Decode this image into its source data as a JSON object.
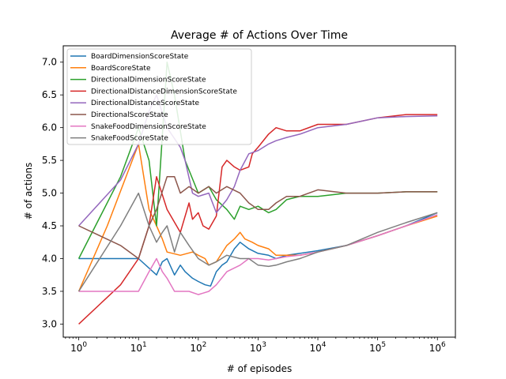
{
  "chart_data": {
    "type": "line",
    "title": "Average # of Actions Over Time",
    "xlabel": "# of episodes",
    "ylabel": "# of actions",
    "xscale": "log",
    "xlim": [
      0.55,
      2000000
    ],
    "ylim": [
      2.8,
      7.25
    ],
    "xticks": [
      {
        "value": 1,
        "base": "10",
        "exp": "0"
      },
      {
        "value": 10,
        "base": "10",
        "exp": "1"
      },
      {
        "value": 100,
        "base": "10",
        "exp": "2"
      },
      {
        "value": 1000,
        "base": "10",
        "exp": "3"
      },
      {
        "value": 10000,
        "base": "10",
        "exp": "4"
      },
      {
        "value": 100000,
        "base": "10",
        "exp": "5"
      },
      {
        "value": 1000000,
        "base": "10",
        "exp": "6"
      }
    ],
    "yticks": [
      "3.0",
      "3.5",
      "4.0",
      "4.5",
      "5.0",
      "5.5",
      "6.0",
      "6.5",
      "7.0"
    ],
    "legend_position": "top-left",
    "grid": false,
    "series": [
      {
        "name": "BoardDimensionScoreState",
        "color": "#1f77b4",
        "points": [
          [
            1,
            4.0
          ],
          [
            3,
            4.0
          ],
          [
            10,
            4.0
          ],
          [
            20,
            3.75
          ],
          [
            25,
            3.95
          ],
          [
            30,
            4.0
          ],
          [
            40,
            3.75
          ],
          [
            50,
            3.9
          ],
          [
            60,
            3.8
          ],
          [
            80,
            3.7
          ],
          [
            100,
            3.65
          ],
          [
            130,
            3.6
          ],
          [
            160,
            3.58
          ],
          [
            200,
            3.8
          ],
          [
            250,
            3.9
          ],
          [
            300,
            3.95
          ],
          [
            400,
            4.15
          ],
          [
            500,
            4.25
          ],
          [
            700,
            4.15
          ],
          [
            1000,
            4.08
          ],
          [
            1500,
            4.05
          ],
          [
            2000,
            4.0
          ],
          [
            3000,
            4.05
          ],
          [
            5000,
            4.08
          ],
          [
            10000,
            4.12
          ],
          [
            30000,
            4.2
          ],
          [
            100000,
            4.35
          ],
          [
            300000,
            4.5
          ],
          [
            1000000,
            4.7
          ]
        ]
      },
      {
        "name": "BoardScoreState",
        "color": "#ff7f0e",
        "points": [
          [
            1,
            3.5
          ],
          [
            3,
            4.5
          ],
          [
            10,
            5.75
          ],
          [
            15,
            4.75
          ],
          [
            20,
            4.5
          ],
          [
            25,
            4.3
          ],
          [
            30,
            4.1
          ],
          [
            50,
            4.05
          ],
          [
            80,
            4.1
          ],
          [
            100,
            4.05
          ],
          [
            130,
            4.0
          ],
          [
            150,
            3.9
          ],
          [
            200,
            3.95
          ],
          [
            300,
            4.2
          ],
          [
            400,
            4.3
          ],
          [
            500,
            4.4
          ],
          [
            600,
            4.3
          ],
          [
            800,
            4.25
          ],
          [
            1000,
            4.2
          ],
          [
            1500,
            4.15
          ],
          [
            2000,
            4.05
          ],
          [
            3000,
            4.05
          ],
          [
            5000,
            4.05
          ],
          [
            10000,
            4.1
          ],
          [
            30000,
            4.2
          ],
          [
            100000,
            4.35
          ],
          [
            300000,
            4.5
          ],
          [
            1000000,
            4.65
          ]
        ]
      },
      {
        "name": "DirectionalDimensionScoreState",
        "color": "#2ca02c",
        "points": [
          [
            1,
            4.0
          ],
          [
            5,
            5.25
          ],
          [
            10,
            6.0
          ],
          [
            15,
            5.5
          ],
          [
            20,
            4.5
          ],
          [
            30,
            7.0
          ],
          [
            40,
            6.5
          ],
          [
            60,
            5.5
          ],
          [
            100,
            5.0
          ],
          [
            150,
            5.1
          ],
          [
            200,
            4.9
          ],
          [
            300,
            4.75
          ],
          [
            400,
            4.6
          ],
          [
            500,
            4.8
          ],
          [
            700,
            4.75
          ],
          [
            1000,
            4.8
          ],
          [
            1500,
            4.7
          ],
          [
            2000,
            4.75
          ],
          [
            3000,
            4.9
          ],
          [
            5000,
            4.95
          ],
          [
            10000,
            4.95
          ],
          [
            30000,
            5.0
          ],
          [
            100000,
            5.0
          ],
          [
            300000,
            5.02
          ],
          [
            1000000,
            5.02
          ]
        ]
      },
      {
        "name": "DirectionalDistanceDimensionScoreState",
        "color": "#d62728",
        "points": [
          [
            1,
            3.0
          ],
          [
            5,
            3.6
          ],
          [
            10,
            4.0
          ],
          [
            15,
            4.5
          ],
          [
            20,
            5.25
          ],
          [
            30,
            4.75
          ],
          [
            50,
            4.4
          ],
          [
            70,
            4.85
          ],
          [
            80,
            4.6
          ],
          [
            100,
            4.7
          ],
          [
            120,
            4.5
          ],
          [
            150,
            4.45
          ],
          [
            200,
            4.65
          ],
          [
            250,
            5.4
          ],
          [
            300,
            5.5
          ],
          [
            400,
            5.4
          ],
          [
            500,
            5.35
          ],
          [
            700,
            5.4
          ],
          [
            800,
            5.6
          ],
          [
            1000,
            5.7
          ],
          [
            1500,
            5.9
          ],
          [
            2000,
            6.0
          ],
          [
            3000,
            5.95
          ],
          [
            5000,
            5.95
          ],
          [
            10000,
            6.05
          ],
          [
            30000,
            6.05
          ],
          [
            100000,
            6.15
          ],
          [
            300000,
            6.2
          ],
          [
            1000000,
            6.2
          ]
        ]
      },
      {
        "name": "DirectionalDistanceScoreState",
        "color": "#9467bd",
        "points": [
          [
            1,
            4.5
          ],
          [
            5,
            5.2
          ],
          [
            10,
            5.75
          ],
          [
            15,
            6.25
          ],
          [
            20,
            6.5
          ],
          [
            30,
            6.0
          ],
          [
            50,
            5.7
          ],
          [
            60,
            5.5
          ],
          [
            80,
            5.0
          ],
          [
            100,
            4.95
          ],
          [
            150,
            5.0
          ],
          [
            200,
            4.7
          ],
          [
            300,
            4.9
          ],
          [
            400,
            5.1
          ],
          [
            500,
            5.35
          ],
          [
            700,
            5.6
          ],
          [
            1000,
            5.65
          ],
          [
            1500,
            5.75
          ],
          [
            2000,
            5.8
          ],
          [
            3000,
            5.85
          ],
          [
            5000,
            5.9
          ],
          [
            10000,
            6.0
          ],
          [
            30000,
            6.05
          ],
          [
            100000,
            6.15
          ],
          [
            300000,
            6.17
          ],
          [
            1000000,
            6.18
          ]
        ]
      },
      {
        "name": "DirectionalScoreState",
        "color": "#8c564b",
        "points": [
          [
            1,
            4.5
          ],
          [
            5,
            4.2
          ],
          [
            10,
            4.0
          ],
          [
            15,
            4.5
          ],
          [
            20,
            4.75
          ],
          [
            30,
            5.25
          ],
          [
            40,
            5.25
          ],
          [
            50,
            5.0
          ],
          [
            70,
            5.1
          ],
          [
            100,
            5.0
          ],
          [
            150,
            5.1
          ],
          [
            200,
            5.0
          ],
          [
            300,
            5.1
          ],
          [
            500,
            5.0
          ],
          [
            700,
            4.85
          ],
          [
            1000,
            4.75
          ],
          [
            1500,
            4.75
          ],
          [
            2000,
            4.85
          ],
          [
            3000,
            4.95
          ],
          [
            5000,
            4.95
          ],
          [
            10000,
            5.05
          ],
          [
            30000,
            5.0
          ],
          [
            100000,
            5.0
          ],
          [
            300000,
            5.02
          ],
          [
            1000000,
            5.02
          ]
        ]
      },
      {
        "name": "SnakeFoodDimensionScoreState",
        "color": "#e377c2",
        "points": [
          [
            1,
            3.5
          ],
          [
            3,
            3.5
          ],
          [
            10,
            3.5
          ],
          [
            15,
            3.8
          ],
          [
            20,
            4.0
          ],
          [
            25,
            3.8
          ],
          [
            30,
            3.7
          ],
          [
            40,
            3.5
          ],
          [
            50,
            3.5
          ],
          [
            70,
            3.5
          ],
          [
            100,
            3.45
          ],
          [
            150,
            3.5
          ],
          [
            200,
            3.6
          ],
          [
            300,
            3.8
          ],
          [
            500,
            3.9
          ],
          [
            700,
            4.0
          ],
          [
            1000,
            4.0
          ],
          [
            1500,
            3.98
          ],
          [
            2000,
            4.0
          ],
          [
            3000,
            4.03
          ],
          [
            5000,
            4.05
          ],
          [
            10000,
            4.1
          ],
          [
            30000,
            4.2
          ],
          [
            100000,
            4.35
          ],
          [
            300000,
            4.5
          ],
          [
            1000000,
            4.67
          ]
        ]
      },
      {
        "name": "SnakeFoodScoreState",
        "color": "#7f7f7f",
        "points": [
          [
            1,
            3.5
          ],
          [
            5,
            4.5
          ],
          [
            10,
            5.0
          ],
          [
            15,
            4.5
          ],
          [
            20,
            4.25
          ],
          [
            25,
            4.4
          ],
          [
            30,
            4.5
          ],
          [
            40,
            4.1
          ],
          [
            50,
            4.4
          ],
          [
            70,
            4.2
          ],
          [
            100,
            4.0
          ],
          [
            150,
            3.9
          ],
          [
            200,
            3.95
          ],
          [
            300,
            4.05
          ],
          [
            500,
            4.0
          ],
          [
            700,
            4.0
          ],
          [
            1000,
            3.9
          ],
          [
            1500,
            3.88
          ],
          [
            2000,
            3.9
          ],
          [
            3000,
            3.95
          ],
          [
            5000,
            4.0
          ],
          [
            10000,
            4.1
          ],
          [
            30000,
            4.2
          ],
          [
            100000,
            4.4
          ],
          [
            300000,
            4.55
          ],
          [
            1000000,
            4.7
          ]
        ]
      }
    ]
  }
}
